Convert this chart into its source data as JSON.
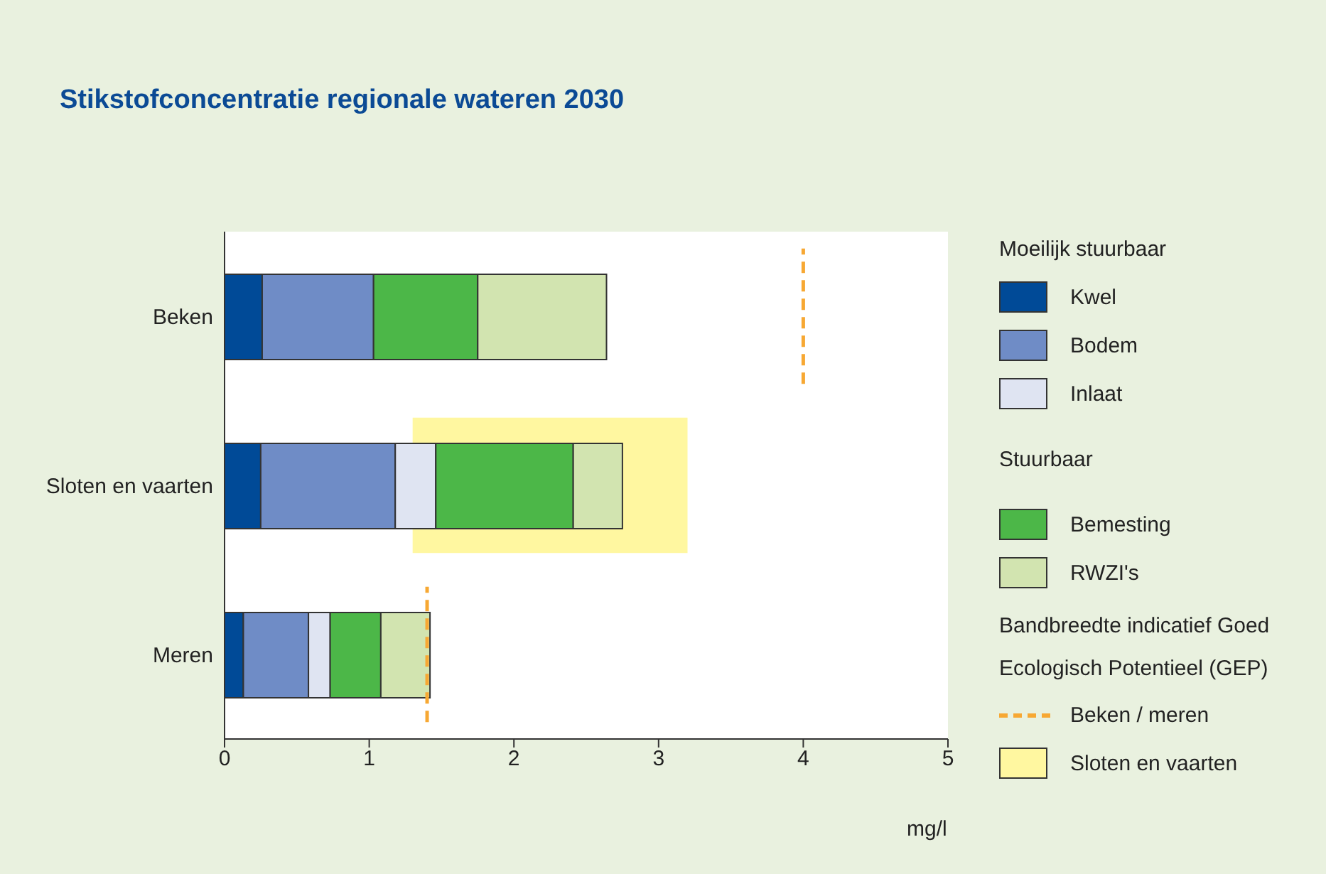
{
  "chart_data": {
    "type": "bar",
    "orientation": "horizontal",
    "stacked": true,
    "title": "Stikstofconcentratie regionale wateren 2030",
    "xlabel": "mg/l",
    "categories": [
      "Beken",
      "Sloten en vaarten",
      "Meren"
    ],
    "series": [
      {
        "name": "Kwel",
        "color": "#004a97",
        "values": [
          0.26,
          0.25,
          0.13
        ]
      },
      {
        "name": "Bodem",
        "color": "#6f8cc6",
        "values": [
          0.77,
          0.93,
          0.45
        ]
      },
      {
        "name": "Inlaat",
        "color": "#dfe4f2",
        "values": [
          null,
          0.28,
          0.15
        ]
      },
      {
        "name": "Bemesting",
        "color": "#4cb748",
        "values": [
          0.72,
          0.95,
          0.35
        ]
      },
      {
        "name": "RWZI's",
        "color": "#d2e4b0",
        "values": [
          0.89,
          0.34,
          0.34
        ]
      }
    ],
    "xlim": [
      0,
      5
    ],
    "xticks": [
      0,
      1,
      2,
      3,
      4,
      5
    ],
    "grid": false,
    "legend": "right",
    "ref_lines": [
      {
        "axis": "x",
        "value": 4,
        "label": "Beken / meren",
        "color": "#f7a833",
        "line_style": "dashed"
      },
      {
        "axis": "x",
        "value": 1.4,
        "color": "#f7a833",
        "line_style": "dashed"
      }
    ],
    "bands": [
      {
        "axis": "x",
        "from": 1.3,
        "to": 3.2,
        "label": "Sloten en vaarten",
        "color": "#fff7a0"
      }
    ],
    "annotations": [
      "Moeilijk stuurbaar",
      "Stuurbaar",
      "Bandbreedte indicatief Goed Ecologisch Potentieel (GEP)"
    ]
  }
}
